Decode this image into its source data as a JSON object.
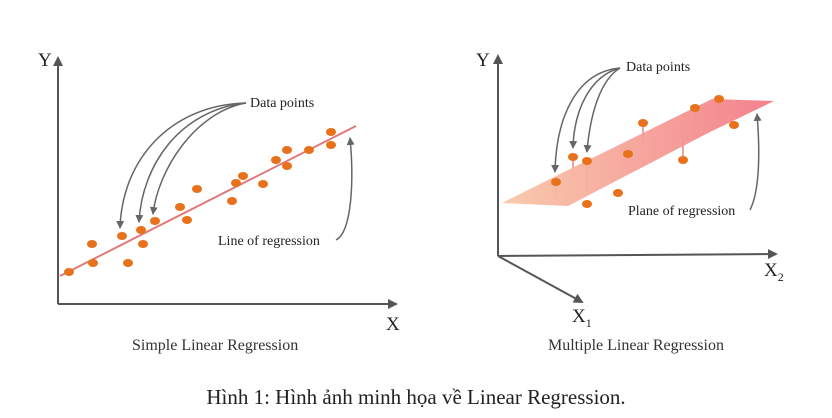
{
  "left_panel": {
    "y_axis": "Y",
    "x_axis": "X",
    "annotation_points": "Data points",
    "annotation_line": "Line of regression",
    "caption": "Simple Linear Regression"
  },
  "right_panel": {
    "y_axis": "Y",
    "x2_axis": "X",
    "x2_sub": "2",
    "x1_axis": "X",
    "x1_sub": "1",
    "annotation_points": "Data points",
    "annotation_plane": "Plane of regression",
    "caption": "Multiple Linear Regression"
  },
  "figure_caption": "Hình 1: Hình ảnh minh họa về Linear Regression.",
  "colors": {
    "point": "#e8721c",
    "line": "#e07a7a",
    "axis": "#555555",
    "plane_light": "#f7c2a4",
    "plane_dark": "#f07f8a",
    "arrow": "#666666"
  }
}
